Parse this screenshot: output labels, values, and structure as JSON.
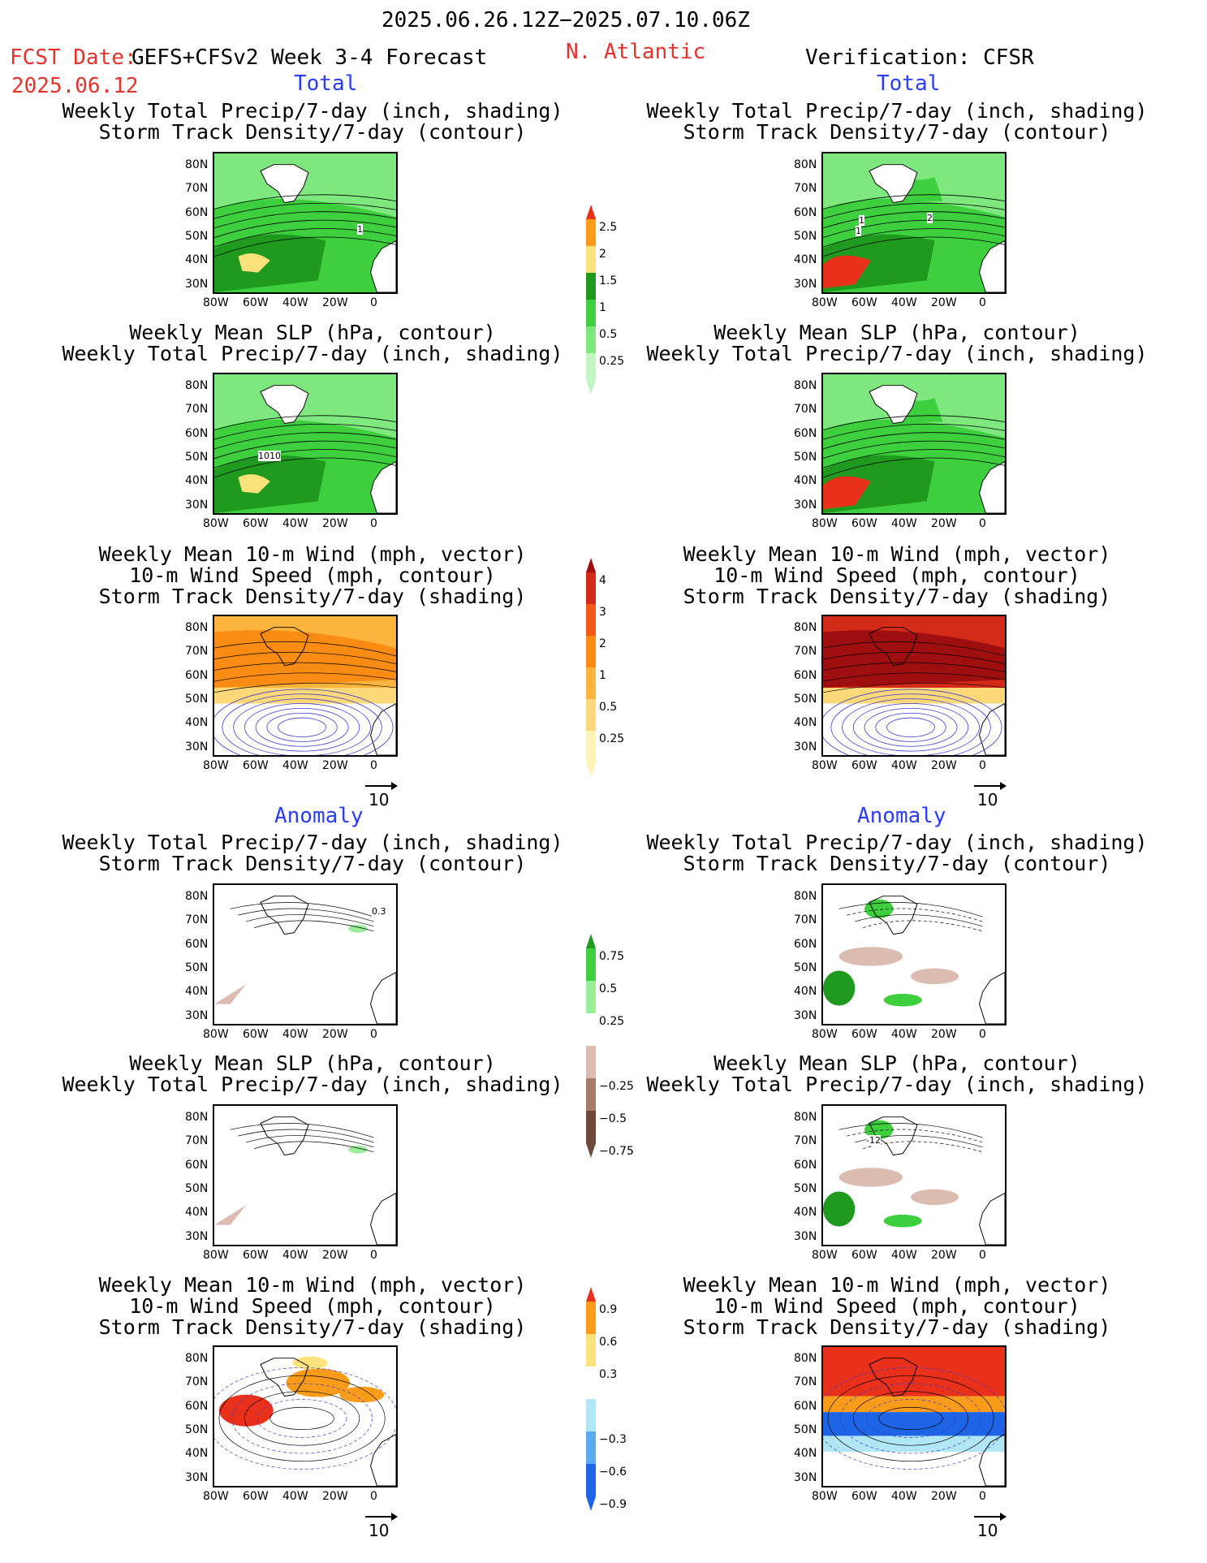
{
  "header": {
    "date_range": "2025.06.26.12Z−2025.07.10.06Z",
    "fcst_label": "FCST Date:",
    "model": "GEFS+CFSv2 Week 3-4 Forecast",
    "fcst_date": "2025.06.12",
    "region": "N. Atlantic",
    "verification": "Verification: CFSR"
  },
  "sections": {
    "total": "Total",
    "anomaly": "Anomaly"
  },
  "titles": {
    "precip_storm": [
      "Weekly Total Precip/7-day (inch, shading)",
      "Storm Track Density/7-day (contour)"
    ],
    "slp_precip": [
      "Weekly Mean SLP (hPa, contour)",
      "Weekly Total Precip/7-day (inch, shading)"
    ],
    "wind_storm": [
      "Weekly Mean 10-m Wind (mph, vector)",
      "10-m Wind Speed (mph, contour)",
      "Storm Track Density/7-day (shading)"
    ]
  },
  "axes": {
    "lat_ticks": [
      "80N",
      "70N",
      "60N",
      "50N",
      "40N",
      "30N"
    ],
    "lon_ticks": [
      "80W",
      "60W",
      "40W",
      "20W",
      "0"
    ]
  },
  "vector_ref": "10",
  "colorbars": {
    "precip_total": {
      "labels": [
        "2.5",
        "2",
        "1.5",
        "1",
        "0.5",
        "0.25"
      ],
      "colors": [
        "#e8301a",
        "#fa9b1a",
        "#fce27a",
        "#1f9a1f",
        "#3dcf3d",
        "#7ee87e",
        "#c4f5c4"
      ]
    },
    "storm_total": {
      "labels": [
        "4",
        "3",
        "2",
        "1",
        "0.5",
        "0.25"
      ],
      "colors": [
        "#a00f0f",
        "#d42a18",
        "#f25a18",
        "#fa8c14",
        "#fcb43c",
        "#fcd878",
        "#fdf2b8"
      ]
    },
    "precip_anom": {
      "labels": [
        "0.75",
        "0.5",
        "0.25",
        "−0.25",
        "−0.5",
        "−0.75"
      ],
      "colors": [
        "#1f9a1f",
        "#3dcf3d",
        "#9aee9a",
        "#ffffff",
        "#dcbcb0",
        "#a87a6a",
        "#6e4a3c"
      ]
    },
    "storm_anom": {
      "labels": [
        "0.9",
        "0.6",
        "0.3",
        "−0.3",
        "−0.6",
        "−0.9"
      ],
      "colors": [
        "#e8301a",
        "#fa9b1a",
        "#fce27a",
        "#ffffff",
        "#b0e6f5",
        "#5aaaf0",
        "#1e64e6"
      ]
    }
  },
  "map_labels": {
    "f_precip_total": "1",
    "f_slp_total": "1010",
    "v_precip_total": [
      "1",
      "1",
      "2"
    ],
    "f_anom_precip": "0.3",
    "v_slp_anom": "-12"
  }
}
